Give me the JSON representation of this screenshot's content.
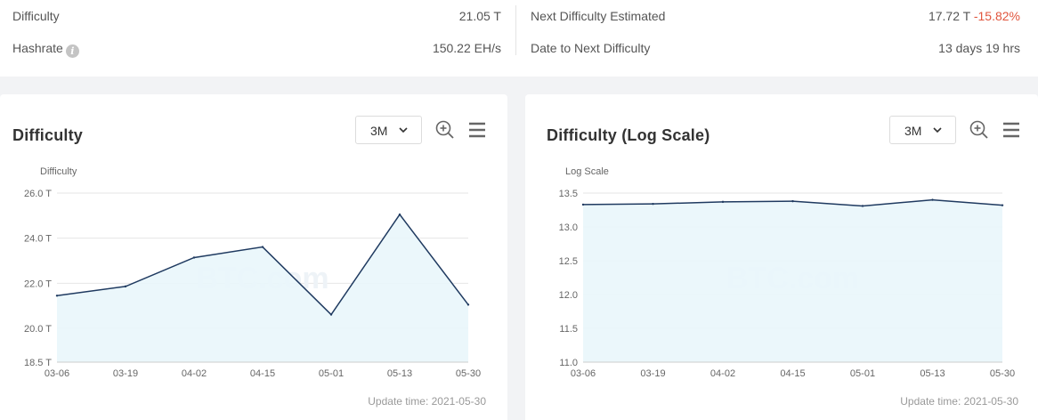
{
  "stats": {
    "difficulty_label": "Difficulty",
    "difficulty_value": "21.05 T",
    "hashrate_label": "Hashrate",
    "hashrate_value": "150.22 EH/s",
    "next_difficulty_label": "Next Difficulty Estimated",
    "next_difficulty_value": "17.72 T",
    "next_difficulty_change": "-15.82%",
    "date_next_label": "Date to Next Difficulty",
    "date_next_value": "13 days 19 hrs",
    "info_icon": "i"
  },
  "cards": [
    {
      "title": "Difficulty",
      "range": "3M",
      "update_time": "Update time: 2021-05-30"
    },
    {
      "title": "Difficulty (Log Scale)",
      "range": "3M",
      "update_time": "Update time: 2021-05-30"
    }
  ],
  "colors": {
    "line": "#1f3a60",
    "area": "#e9f6fb",
    "grid": "#e6e6e6",
    "negative": "#e1553d"
  },
  "chart_data": [
    {
      "type": "area",
      "title": "Difficulty",
      "ylabel": "Difficulty",
      "watermark": "BTC.com",
      "x": [
        "03-06",
        "03-19",
        "04-02",
        "04-15",
        "05-01",
        "05-13",
        "05-30"
      ],
      "values": [
        21.45,
        21.86,
        23.14,
        23.61,
        20.61,
        25.05,
        21.05
      ],
      "yticks": [
        18.5,
        20.0,
        22.0,
        24.0,
        26.0
      ],
      "ytick_labels": [
        "18.5 T",
        "20.0 T",
        "22.0 T",
        "24.0 T",
        "26.0 T"
      ],
      "ylim": [
        18.5,
        26.0
      ],
      "grid": true
    },
    {
      "type": "area",
      "title": "Difficulty (Log Scale)",
      "ylabel": "Log Scale",
      "watermark": "BTC.com",
      "x": [
        "03-06",
        "03-19",
        "04-02",
        "04-15",
        "05-01",
        "05-13",
        "05-30"
      ],
      "values": [
        13.33,
        13.34,
        13.37,
        13.38,
        13.31,
        13.4,
        13.32
      ],
      "yticks": [
        11.0,
        11.5,
        12.0,
        12.5,
        13.0,
        13.5
      ],
      "ytick_labels": [
        "11.0",
        "11.5",
        "12.0",
        "12.5",
        "13.0",
        "13.5"
      ],
      "ylim": [
        11.0,
        13.5
      ],
      "grid": true
    }
  ]
}
